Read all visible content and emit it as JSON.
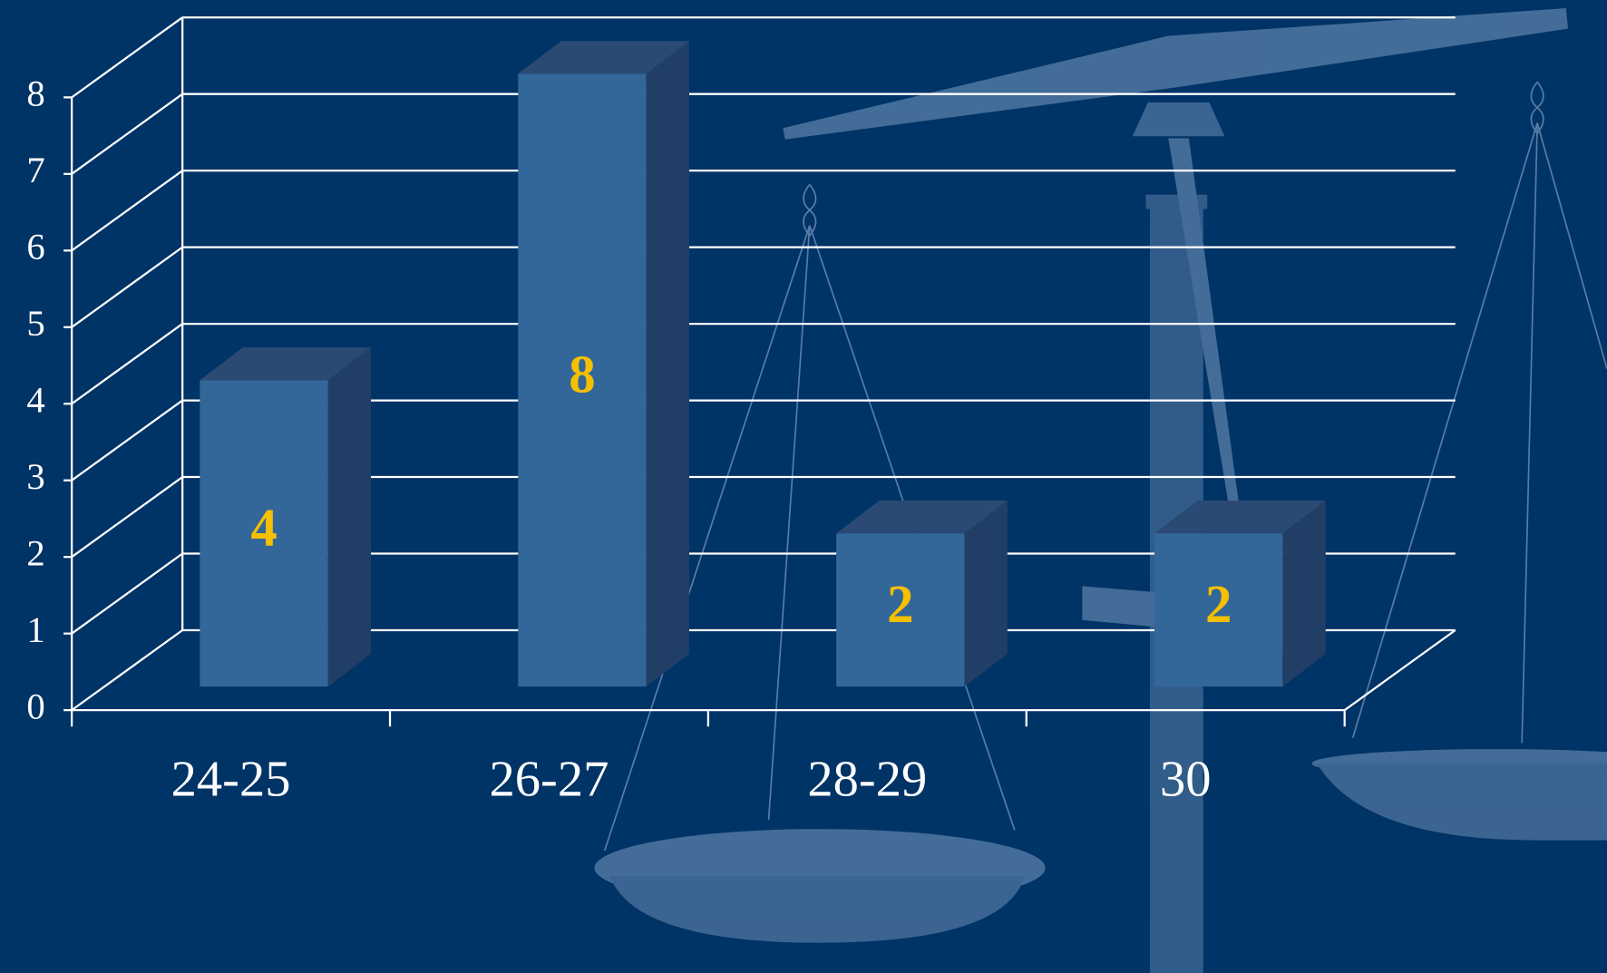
{
  "chart_data": {
    "type": "bar3d",
    "categories": [
      "24-25",
      "26-27",
      "28-29",
      "30"
    ],
    "values": [
      4,
      8,
      2,
      2
    ],
    "color": "#336699",
    "label_color": "#f5c000",
    "ylim": [
      0,
      8
    ],
    "yticks": [
      0,
      1,
      2,
      3,
      4,
      5,
      6,
      7,
      8
    ],
    "grid": true
  }
}
